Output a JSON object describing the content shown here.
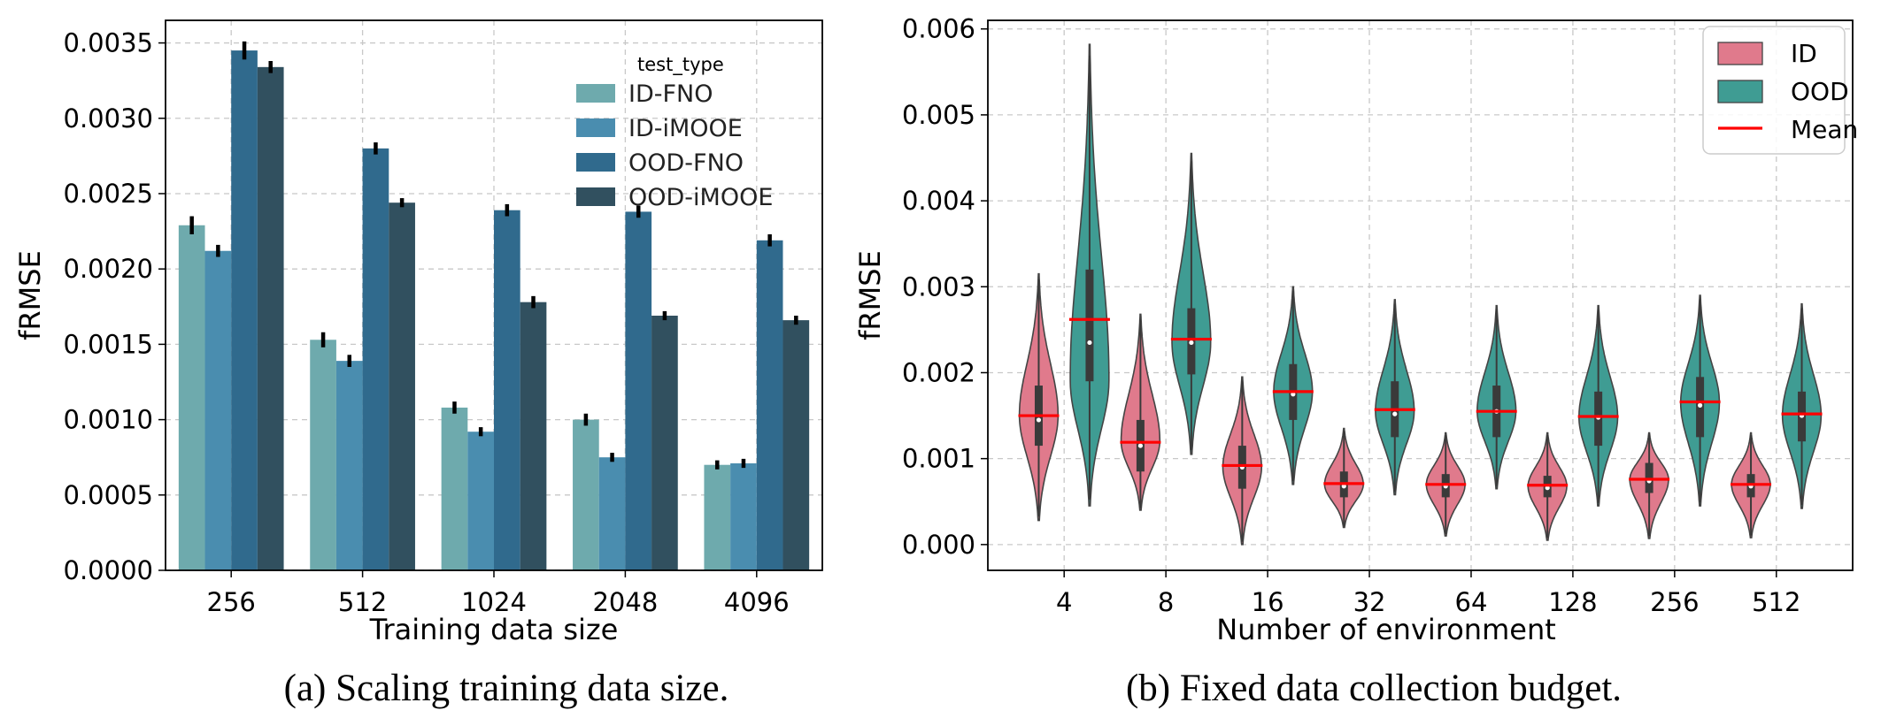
{
  "chart_data": [
    {
      "type": "bar",
      "caption": "(a) Scaling training data size.",
      "xlabel": "Training data size",
      "ylabel": "fRMSE",
      "ylim": [
        0,
        0.00365
      ],
      "yticks": [
        0,
        0.0005,
        0.001,
        0.0015,
        0.002,
        0.0025,
        0.003,
        0.0035
      ],
      "ytick_labels": [
        "0.0000",
        "0.0005",
        "0.0010",
        "0.0015",
        "0.0020",
        "0.0025",
        "0.0030",
        "0.0035"
      ],
      "categories": [
        "256",
        "512",
        "1024",
        "2048",
        "4096"
      ],
      "grid": true,
      "legend": {
        "title": "test_type",
        "placement": "upper-right"
      },
      "series": [
        {
          "name": "ID-FNO",
          "color": "#6eaaad",
          "values": [
            0.00229,
            0.00153,
            0.00108,
            0.001,
            0.0007
          ],
          "err": [
            6e-05,
            5e-05,
            4e-05,
            4e-05,
            3e-05
          ]
        },
        {
          "name": "ID-iMOOE",
          "color": "#4a8daf",
          "values": [
            0.00212,
            0.00139,
            0.00092,
            0.00075,
            0.00071
          ],
          "err": [
            4e-05,
            4e-05,
            3e-05,
            3e-05,
            3e-05
          ]
        },
        {
          "name": "OOD-FNO",
          "color": "#306a8d",
          "values": [
            0.00345,
            0.0028,
            0.00239,
            0.00238,
            0.00219
          ],
          "err": [
            6e-05,
            4e-05,
            4e-05,
            4e-05,
            4e-05
          ]
        },
        {
          "name": "OOD-iMOOE",
          "color": "#31505f",
          "values": [
            0.00334,
            0.00244,
            0.00178,
            0.00169,
            0.00166
          ],
          "err": [
            4e-05,
            3e-05,
            4e-05,
            3e-05,
            3e-05
          ]
        }
      ]
    },
    {
      "type": "violin",
      "caption": "(b) Fixed data collection budget.",
      "xlabel": "Number of environment",
      "ylabel": "fRMSE",
      "ylim": [
        -0.0003,
        0.0061
      ],
      "yticks": [
        0,
        0.001,
        0.002,
        0.003,
        0.004,
        0.005,
        0.006
      ],
      "ytick_labels": [
        "0.000",
        "0.001",
        "0.002",
        "0.003",
        "0.004",
        "0.005",
        "0.006"
      ],
      "categories": [
        "4",
        "8",
        "16",
        "32",
        "64",
        "128",
        "256",
        "512"
      ],
      "grid": true,
      "legend": {
        "placement": "upper-right",
        "mean_label": "Mean",
        "mean_color": "#ff0000"
      },
      "series": [
        {
          "name": "ID",
          "color": "#e07a8c",
          "min": [
            0.00028,
            0.0004,
            0.0,
            0.0002,
            0.0001,
            5e-05,
            7e-05,
            8e-05
          ],
          "q1": [
            0.00115,
            0.00085,
            0.00065,
            0.00055,
            0.00055,
            0.00055,
            0.0006,
            0.00055
          ],
          "median": [
            0.00145,
            0.00115,
            0.0009,
            0.00068,
            0.00068,
            0.00066,
            0.00074,
            0.00068
          ],
          "q3": [
            0.00185,
            0.00145,
            0.00115,
            0.00085,
            0.00082,
            0.0008,
            0.00095,
            0.00082
          ],
          "max": [
            0.00315,
            0.00268,
            0.00195,
            0.00135,
            0.0013,
            0.0013,
            0.0013,
            0.0013
          ],
          "mean": [
            0.0015,
            0.00119,
            0.00092,
            0.00071,
            0.0007,
            0.00069,
            0.00076,
            0.0007
          ],
          "mode": [
            0.0015,
            0.0012,
            0.0009,
            0.0007,
            0.0007,
            0.00068,
            0.00076,
            0.0007
          ]
        },
        {
          "name": "OOD",
          "color": "#3f9c93",
          "min": [
            0.00045,
            0.00105,
            0.0007,
            0.00058,
            0.00065,
            0.00045,
            0.00045,
            0.00042
          ],
          "q1": [
            0.0019,
            0.00198,
            0.00145,
            0.00125,
            0.00125,
            0.00115,
            0.00125,
            0.0012
          ],
          "median": [
            0.00235,
            0.00235,
            0.00175,
            0.00152,
            0.00155,
            0.00148,
            0.00162,
            0.0015
          ],
          "q3": [
            0.0032,
            0.00275,
            0.0021,
            0.0019,
            0.00185,
            0.00178,
            0.00195,
            0.00178
          ],
          "max": [
            0.00582,
            0.00455,
            0.003,
            0.00285,
            0.00278,
            0.00278,
            0.0029,
            0.0028
          ],
          "mean": [
            0.00262,
            0.00239,
            0.00178,
            0.00157,
            0.00155,
            0.00149,
            0.00166,
            0.00152
          ],
          "mode": [
            0.0019,
            0.00235,
            0.00178,
            0.00155,
            0.00155,
            0.00148,
            0.00165,
            0.0015
          ]
        }
      ]
    }
  ]
}
